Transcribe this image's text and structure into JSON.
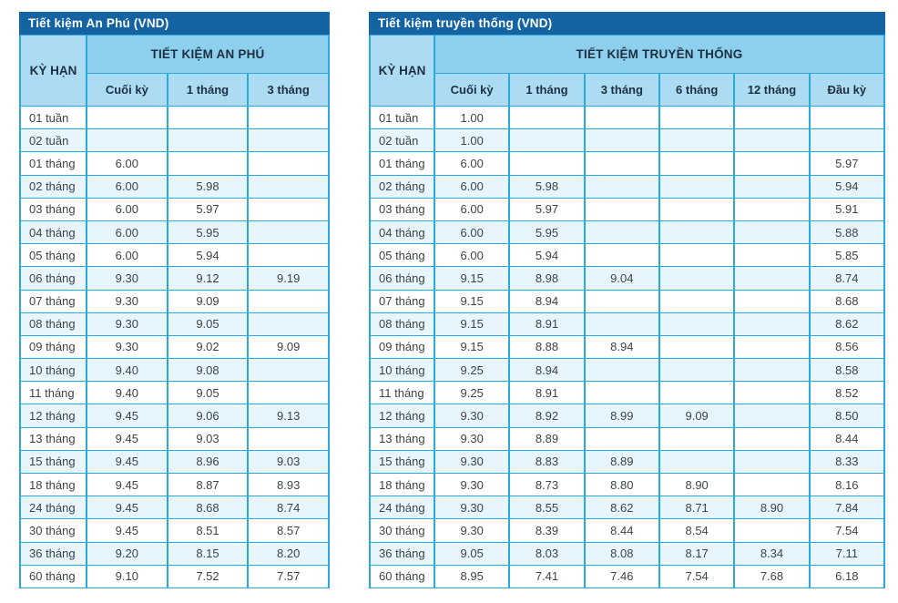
{
  "colors": {
    "title_bar": "#1463a3",
    "group_band": "#8dd0ee",
    "subheader": "#abdcf4",
    "border": "#2aa9e0",
    "alt_row": "#e7f5fc",
    "header_text": "#1d2f40",
    "cell_text": "#3d4449"
  },
  "chart_data": [
    {
      "type": "table",
      "title": "Tiết kiệm An Phú (VND)",
      "corner_header": "KỲ HẠN",
      "group_header": "TIẾT KIỆM AN PHÚ",
      "columns": [
        "Cuối kỳ",
        "1 tháng",
        "3 tháng"
      ],
      "rows": [
        [
          "01 tuần",
          "",
          "",
          ""
        ],
        [
          "02 tuần",
          "",
          "",
          ""
        ],
        [
          "01 tháng",
          "6.00",
          "",
          ""
        ],
        [
          "02 tháng",
          "6.00",
          "5.98",
          ""
        ],
        [
          "03 tháng",
          "6.00",
          "5.97",
          ""
        ],
        [
          "04 tháng",
          "6.00",
          "5.95",
          ""
        ],
        [
          "05 tháng",
          "6.00",
          "5.94",
          ""
        ],
        [
          "06 tháng",
          "9.30",
          "9.12",
          "9.19"
        ],
        [
          "07 tháng",
          "9.30",
          "9.09",
          ""
        ],
        [
          "08 tháng",
          "9.30",
          "9.05",
          ""
        ],
        [
          "09 tháng",
          "9.30",
          "9.02",
          "9.09"
        ],
        [
          "10 tháng",
          "9.40",
          "9.08",
          ""
        ],
        [
          "11 tháng",
          "9.40",
          "9.05",
          ""
        ],
        [
          "12 tháng",
          "9.45",
          "9.06",
          "9.13"
        ],
        [
          "13 tháng",
          "9.45",
          "9.03",
          ""
        ],
        [
          "15 tháng",
          "9.45",
          "8.96",
          "9.03"
        ],
        [
          "18 tháng",
          "9.45",
          "8.87",
          "8.93"
        ],
        [
          "24 tháng",
          "9.45",
          "8.68",
          "8.74"
        ],
        [
          "30 tháng",
          "9.45",
          "8.51",
          "8.57"
        ],
        [
          "36 tháng",
          "9.20",
          "8.15",
          "8.20"
        ],
        [
          "60 tháng",
          "9.10",
          "7.52",
          "7.57"
        ]
      ]
    },
    {
      "type": "table",
      "title": "Tiết kiệm truyền thống (VND)",
      "corner_header": "KỲ HẠN",
      "group_header": "TIẾT KIỆM TRUYỀN THỐNG",
      "columns": [
        "Cuối kỳ",
        "1 tháng",
        "3 tháng",
        "6 tháng",
        "12 tháng",
        "Đầu kỳ"
      ],
      "rows": [
        [
          "01 tuần",
          "1.00",
          "",
          "",
          "",
          "",
          ""
        ],
        [
          "02 tuần",
          "1.00",
          "",
          "",
          "",
          "",
          ""
        ],
        [
          "01 tháng",
          "6.00",
          "",
          "",
          "",
          "",
          "5.97"
        ],
        [
          "02 tháng",
          "6.00",
          "5.98",
          "",
          "",
          "",
          "5.94"
        ],
        [
          "03 tháng",
          "6.00",
          "5.97",
          "",
          "",
          "",
          "5.91"
        ],
        [
          "04 tháng",
          "6.00",
          "5.95",
          "",
          "",
          "",
          "5.88"
        ],
        [
          "05 tháng",
          "6.00",
          "5.94",
          "",
          "",
          "",
          "5.85"
        ],
        [
          "06 tháng",
          "9.15",
          "8.98",
          "9.04",
          "",
          "",
          "8.74"
        ],
        [
          "07 tháng",
          "9.15",
          "8.94",
          "",
          "",
          "",
          "8.68"
        ],
        [
          "08 tháng",
          "9.15",
          "8.91",
          "",
          "",
          "",
          "8.62"
        ],
        [
          "09 tháng",
          "9.15",
          "8.88",
          "8.94",
          "",
          "",
          "8.56"
        ],
        [
          "10 tháng",
          "9.25",
          "8.94",
          "",
          "",
          "",
          "8.58"
        ],
        [
          "11 tháng",
          "9.25",
          "8.91",
          "",
          "",
          "",
          "8.52"
        ],
        [
          "12 tháng",
          "9.30",
          "8.92",
          "8.99",
          "9.09",
          "",
          "8.50"
        ],
        [
          "13 tháng",
          "9.30",
          "8.89",
          "",
          "",
          "",
          "8.44"
        ],
        [
          "15 tháng",
          "9.30",
          "8.83",
          "8.89",
          "",
          "",
          "8.33"
        ],
        [
          "18 tháng",
          "9.30",
          "8.73",
          "8.80",
          "8.90",
          "",
          "8.16"
        ],
        [
          "24 tháng",
          "9.30",
          "8.55",
          "8.62",
          "8.71",
          "8.90",
          "7.84"
        ],
        [
          "30 tháng",
          "9.30",
          "8.39",
          "8.44",
          "8.54",
          "",
          "7.54"
        ],
        [
          "36 tháng",
          "9.05",
          "8.03",
          "8.08",
          "8.17",
          "8.34",
          "7.11"
        ],
        [
          "60 tháng",
          "8.95",
          "7.41",
          "7.46",
          "7.54",
          "7.68",
          "6.18"
        ]
      ]
    }
  ]
}
